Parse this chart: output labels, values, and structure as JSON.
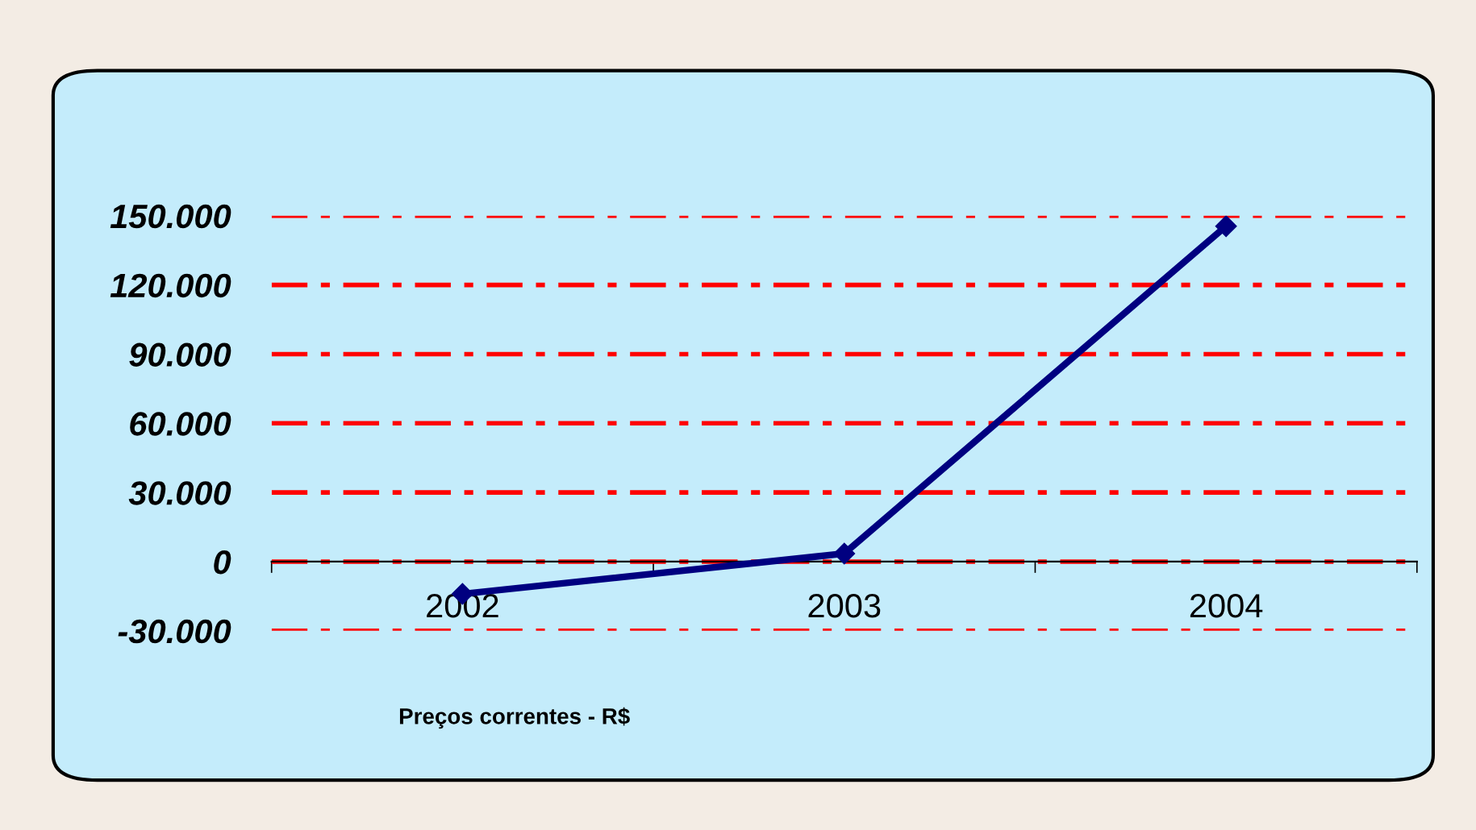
{
  "chart_data": {
    "type": "line",
    "categories": [
      "2002",
      "2003",
      "2004"
    ],
    "series": [
      {
        "color": "#000080",
        "values": [
          -14000,
          3500,
          145500
        ]
      }
    ],
    "ylim": [
      -30000,
      150000
    ],
    "yticks": [
      {
        "value": -30000,
        "label": "-30.000"
      },
      {
        "value": 0,
        "label": "0"
      },
      {
        "value": 30000,
        "label": "30.000"
      },
      {
        "value": 60000,
        "label": "60.000"
      },
      {
        "value": 90000,
        "label": "90.000"
      },
      {
        "value": 120000,
        "label": "120.000"
      },
      {
        "value": 150000,
        "label": "150.000"
      }
    ],
    "grid": "y",
    "marker": "diamond",
    "line_style": "solid",
    "legend": false,
    "annotations": [
      "Preços correntes - R$"
    ]
  }
}
